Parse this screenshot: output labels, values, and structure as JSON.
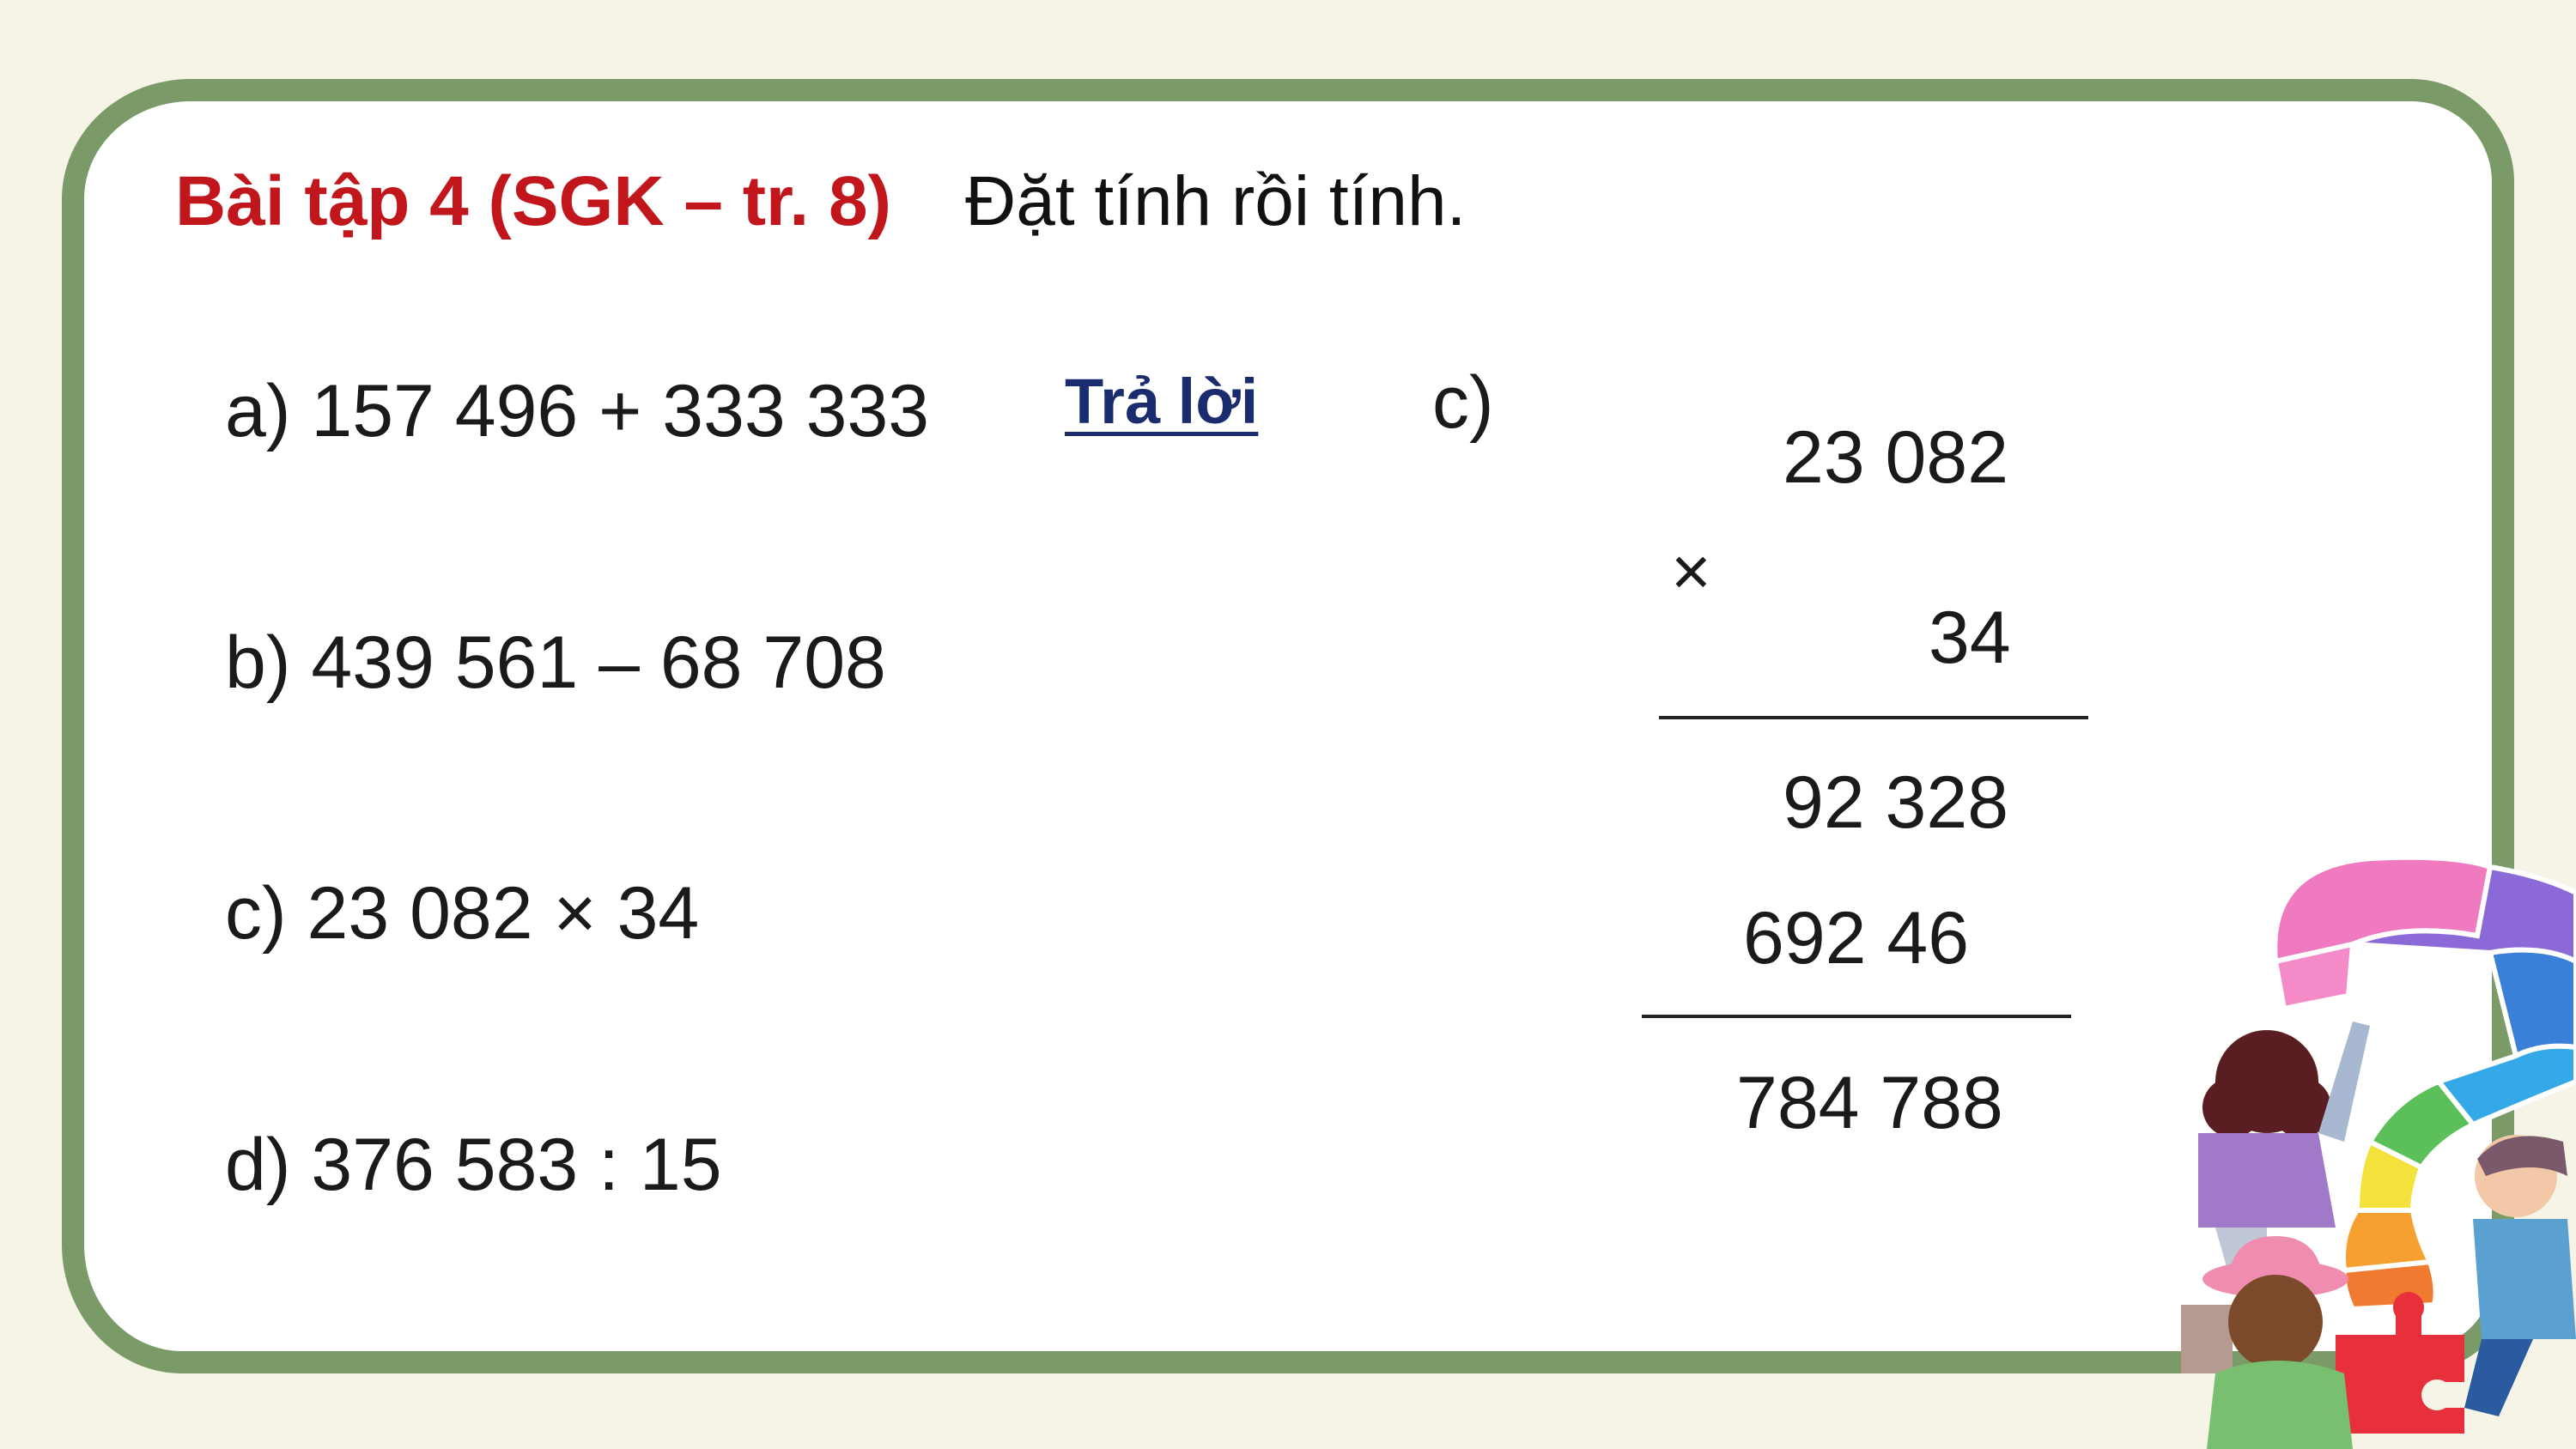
{
  "header": {
    "exercise_label": "Bài tập 4 (SGK – tr. 8)",
    "instruction": "Đặt tính rồi tính."
  },
  "problems": [
    {
      "text": "a) 157 496 + 333 333"
    },
    {
      "text": "b) 439 561 – 68 708"
    },
    {
      "text": "c) 23 082 × 34"
    },
    {
      "text": "d) 376 583 : 15"
    }
  ],
  "answer_link": "Trả lời",
  "solution": {
    "label": "c)",
    "multiplicand": "23 082",
    "operator": "×",
    "multiplier": "34",
    "partial_1": "92 328",
    "partial_2": "692 46",
    "result": "784 788"
  },
  "colors": {
    "frame": "#7a9a68",
    "title": "#c0161c",
    "link": "#1a2c6e"
  }
}
